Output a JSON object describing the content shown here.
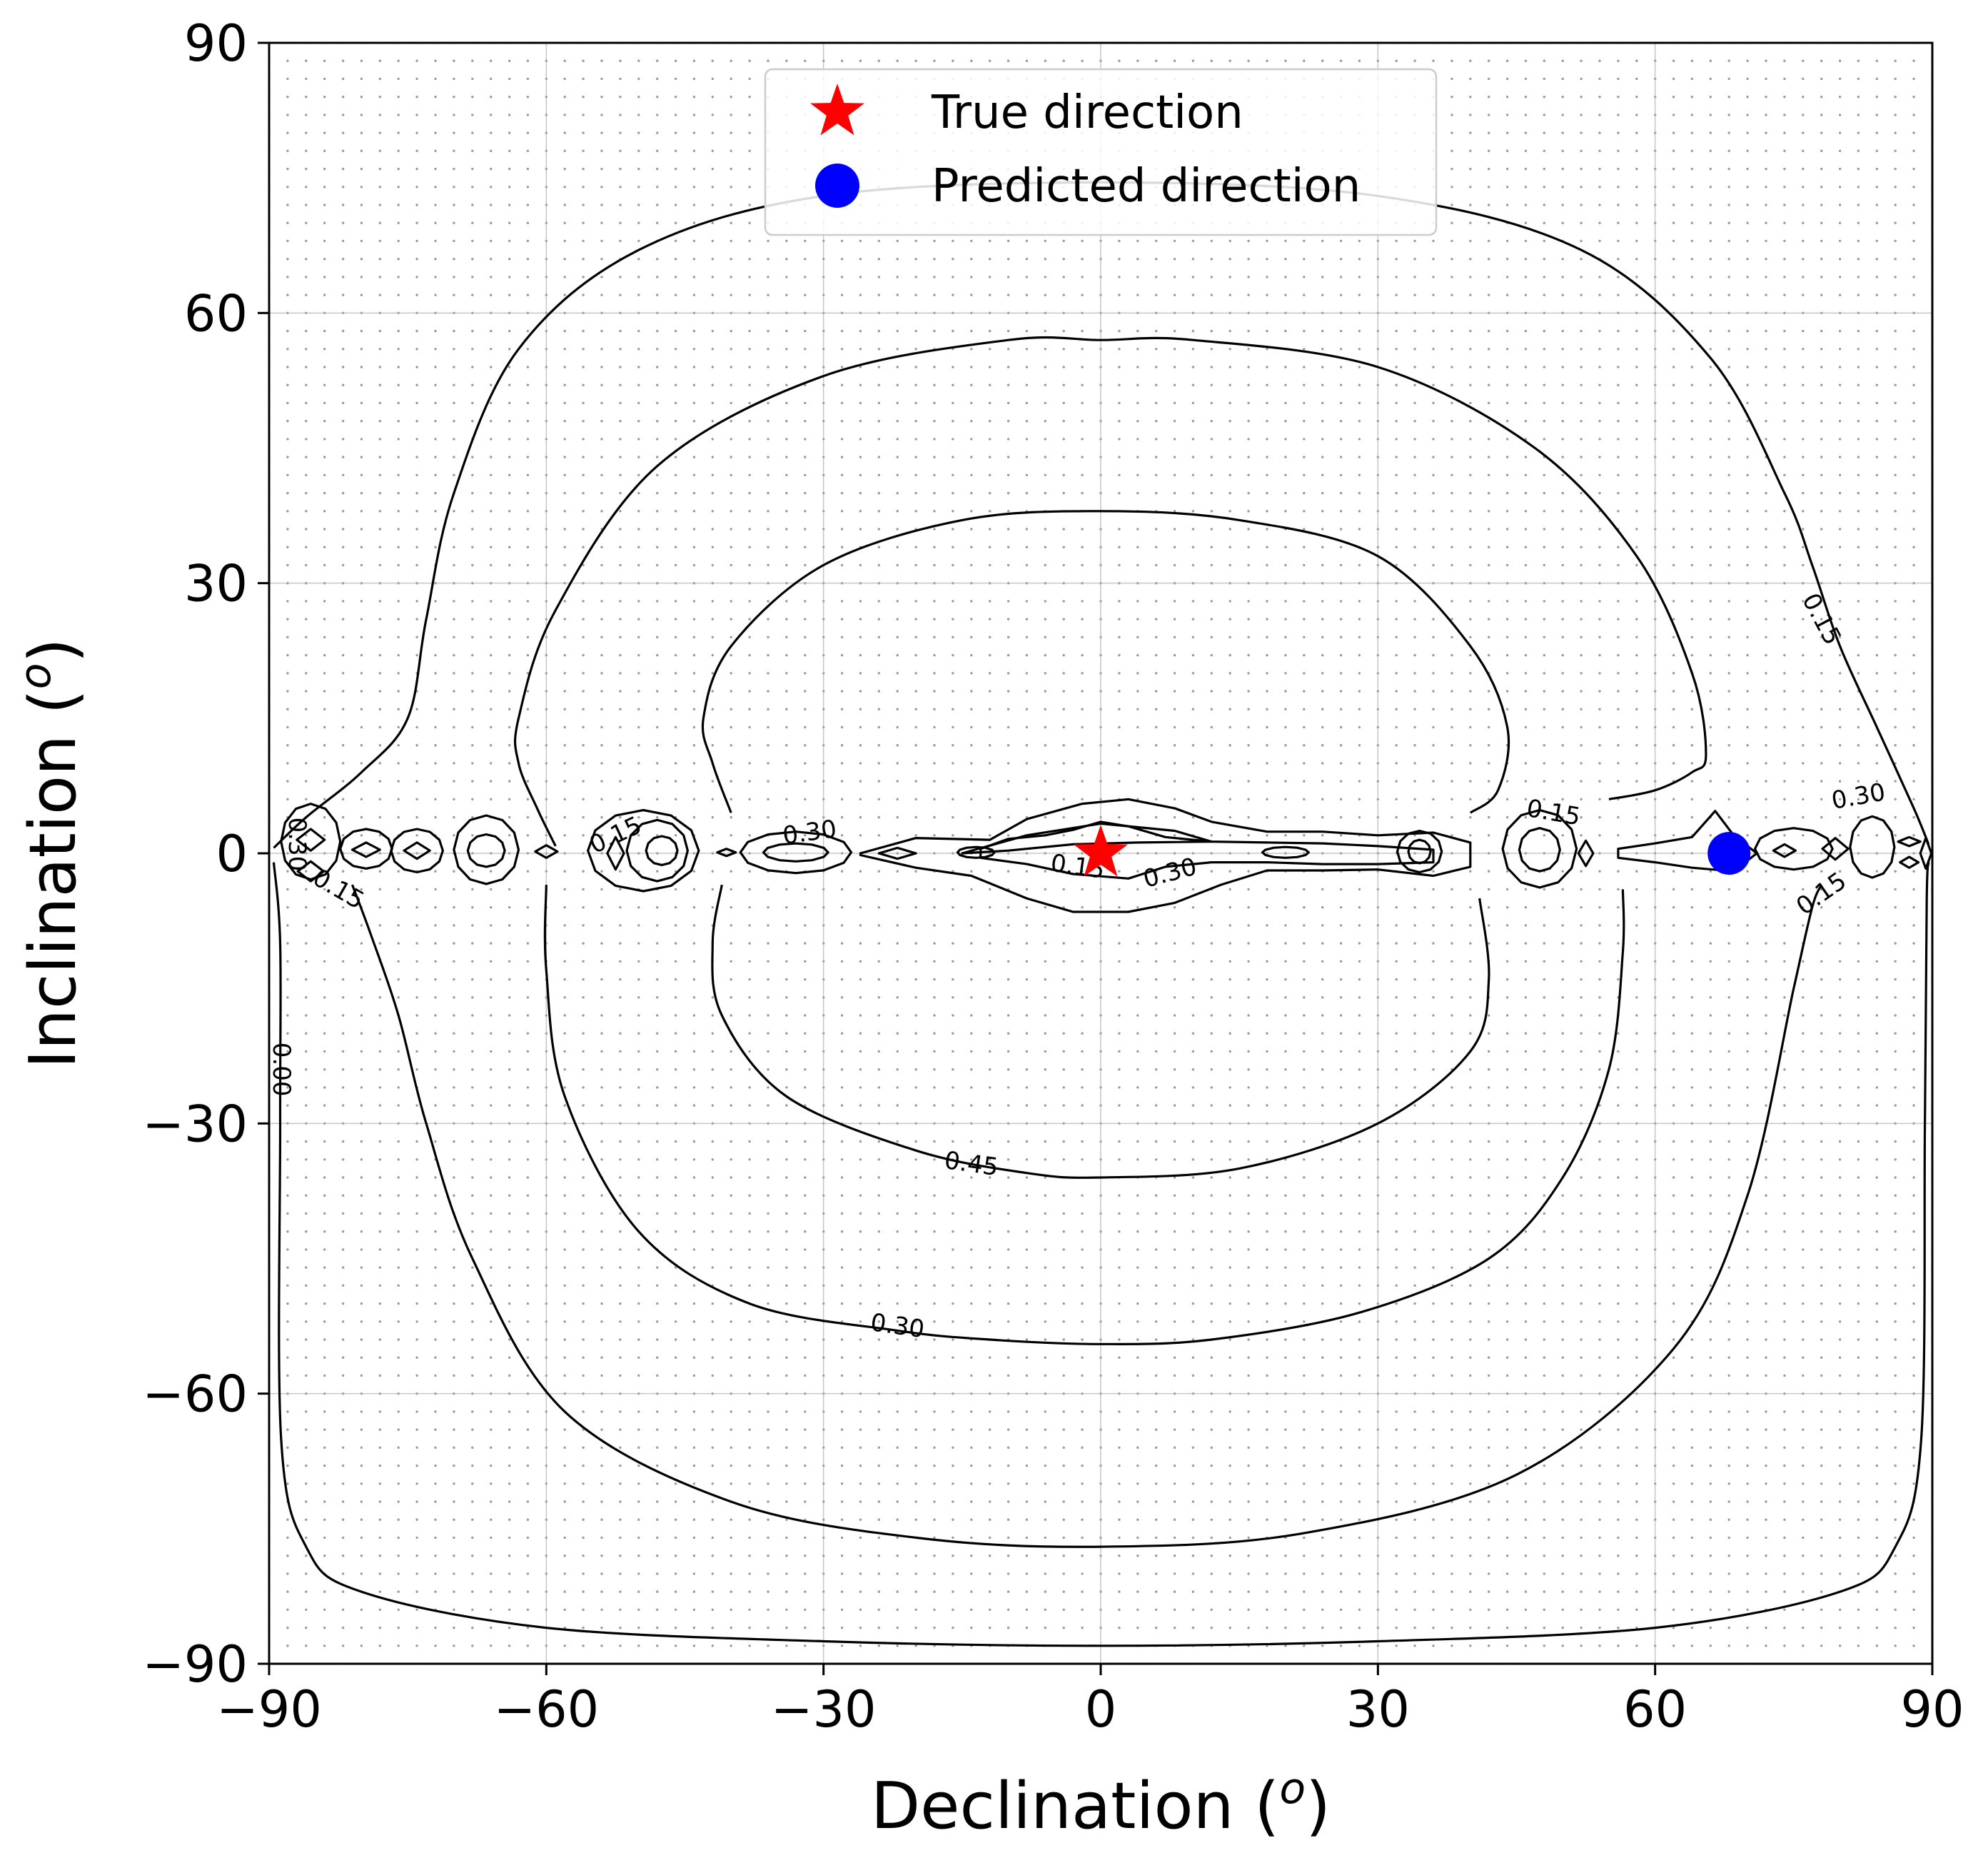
{
  "chart_data": {
    "type": "contour",
    "xlabel_main": "Declination (",
    "xlabel_sup": "o",
    "xlabel_end": ")",
    "ylabel_main": "Inclination (",
    "ylabel_sup": "o",
    "ylabel_end": ")",
    "xlim": [
      -90,
      90
    ],
    "ylim": [
      -90,
      90
    ],
    "xticks": [
      -90,
      -60,
      -30,
      0,
      30,
      60,
      90
    ],
    "yticks": [
      -90,
      -60,
      -30,
      0,
      30,
      60,
      90
    ],
    "xtick_labels": [
      "−90",
      "−60",
      "−30",
      "0",
      "30",
      "60",
      "90"
    ],
    "ytick_labels": [
      "−90",
      "−60",
      "−30",
      "0",
      "30",
      "60",
      "90"
    ],
    "grid": true,
    "legend_position": "top-center",
    "contour_levels": [
      0.0,
      0.15,
      0.3,
      0.45
    ],
    "contour_labels": [
      {
        "text": "0.15",
        "x": 78,
        "y": 26,
        "rotate": 62
      },
      {
        "text": "0.45",
        "x": -14,
        "y": -34.5,
        "rotate": 8
      },
      {
        "text": "0.30",
        "x": -22,
        "y": -52.5,
        "rotate": 8
      },
      {
        "text": "0.00",
        "x": -88.7,
        "y": -24,
        "rotate": 90
      },
      {
        "text": "0.15",
        "x": -52.5,
        "y": 2,
        "rotate": -25
      },
      {
        "text": "0.30",
        "x": -31.5,
        "y": 2.3,
        "rotate": -8
      },
      {
        "text": "0.15",
        "x": -2.5,
        "y": -1.5,
        "rotate": 8
      },
      {
        "text": "0.30",
        "x": 7.5,
        "y": -2.2,
        "rotate": -15
      },
      {
        "text": "0.15",
        "x": 49,
        "y": 4.5,
        "rotate": 10
      },
      {
        "text": "0.30",
        "x": 82,
        "y": 6.3,
        "rotate": -10
      },
      {
        "text": "0.15",
        "x": 78,
        "y": -4.5,
        "rotate": -35
      },
      {
        "text": "0.30",
        "x": -87,
        "y": 1,
        "rotate": 90
      },
      {
        "text": "0.15",
        "x": -82.5,
        "y": -4,
        "rotate": 30
      }
    ],
    "series": [
      {
        "name": "True direction",
        "marker": "star",
        "color": "#ff0000",
        "x": 0,
        "y": 0
      },
      {
        "name": "Predicted direction",
        "marker": "circle",
        "color": "#0000ff",
        "x": 68,
        "y": 0
      }
    ]
  }
}
